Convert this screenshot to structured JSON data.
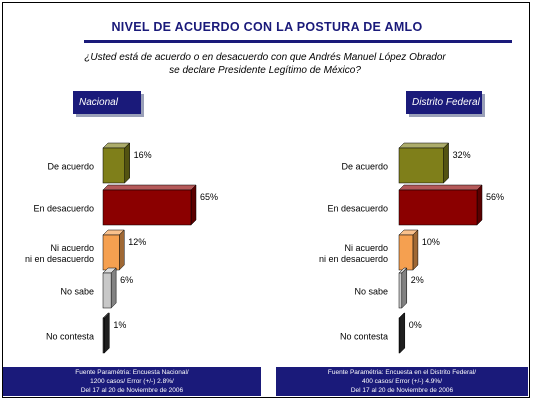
{
  "title": "NIVEL DE ACUERDO CON LA POSTURA DE AMLO",
  "question_line1": "¿Usted está de acuerdo o en desacuerdo con que Andrés Manuel López Obrador",
  "question_line2": "se declare Presidente Legítimo de México?",
  "colors": {
    "navy": "#1a1a7a",
    "de_acuerdo": "#7f7f1a",
    "en_desacuerdo": "#8b0000",
    "ni_acuerdo": "#f5a050",
    "no_sabe": "#c8c8c8",
    "no_contesta": "#303030"
  },
  "chart_data": [
    {
      "type": "bar",
      "panel": "Nacional",
      "categories": [
        "De acuerdo",
        "En desacuerdo",
        "Ni acuerdo\nni en desacuerdo",
        "No sabe",
        "No contesta"
      ],
      "values": [
        16,
        65,
        12,
        6,
        1
      ],
      "value_labels": [
        "16%",
        "65%",
        "12%",
        "6%",
        "1%"
      ],
      "orientation": "horizontal",
      "xlim": [
        0,
        70
      ]
    },
    {
      "type": "bar",
      "panel": "Distrito Federal",
      "categories": [
        "De acuerdo",
        "En desacuerdo",
        "Ni acuerdo\nni en desacuerdo",
        "No sabe",
        "No contesta"
      ],
      "values": [
        32,
        56,
        10,
        2,
        0
      ],
      "value_labels": [
        "32%",
        "56%",
        "10%",
        "2%",
        "0%"
      ],
      "orientation": "horizontal",
      "xlim": [
        0,
        70
      ]
    }
  ],
  "footers": [
    {
      "line1": "Fuente Paramétria: Encuesta Nacional/",
      "line2": "1200 casos/ Error (+/-) 2.8%/",
      "line3": "Del 17 al 20 de Noviembre de 2006"
    },
    {
      "line1": "Fuente Paramétria: Encuesta en el Distrito Federal/",
      "line2": "400 casos/ Error (+/-) 4.9%/",
      "line3": "Del 17 al 20 de Noviembre de 2006"
    }
  ]
}
